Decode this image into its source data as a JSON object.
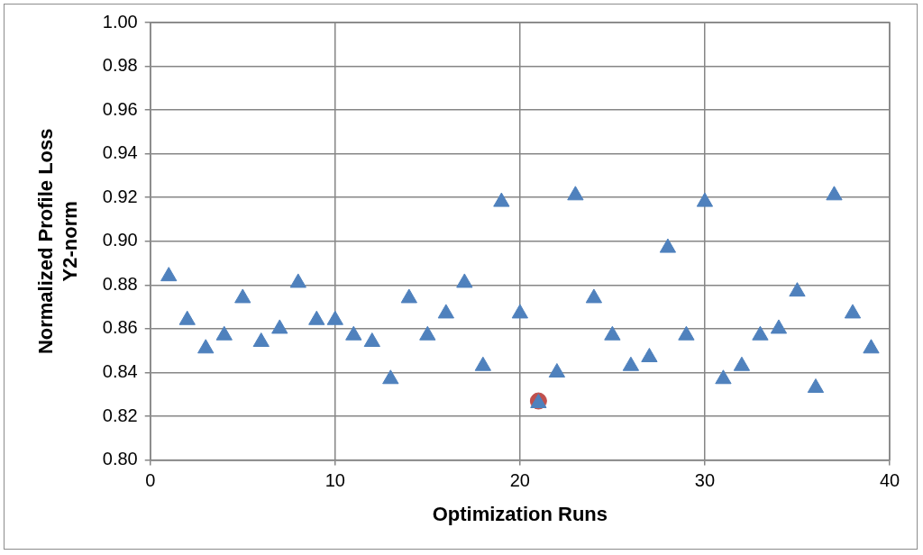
{
  "chart_data": {
    "type": "scatter",
    "x_label": "Optimization Runs",
    "y_label": [
      "Normalized Profile Loss",
      "Y2-norm"
    ],
    "xlim": [
      0,
      40
    ],
    "xticks": [
      0,
      10,
      20,
      30,
      40
    ],
    "ylim": [
      0.8,
      1.0
    ],
    "yticks": [
      {
        "value": 0.8,
        "label": "0.80"
      },
      {
        "value": 0.82,
        "label": "0.82"
      },
      {
        "value": 0.84,
        "label": "0.84"
      },
      {
        "value": 0.86,
        "label": "0.86"
      },
      {
        "value": 0.88,
        "label": "0.88"
      },
      {
        "value": 0.9,
        "label": "0.90"
      },
      {
        "value": 0.92,
        "label": "0.92"
      },
      {
        "value": 0.94,
        "label": "0.94"
      },
      {
        "value": 0.96,
        "label": "0.96"
      },
      {
        "value": 0.98,
        "label": "0.98"
      },
      {
        "value": 1.0,
        "label": "1.00"
      }
    ],
    "grid": true,
    "series": [
      {
        "color": "#4f81bd",
        "marker": "triangle",
        "x": [
          1,
          2,
          3,
          4,
          5,
          6,
          7,
          8,
          9,
          10,
          11,
          12,
          13,
          14,
          15,
          16,
          17,
          18,
          19,
          20,
          21,
          22,
          23,
          24,
          25,
          26,
          27,
          28,
          29,
          30,
          31,
          32,
          33,
          34,
          35,
          36,
          37,
          38,
          39
        ],
        "values": [
          0.884,
          0.864,
          0.851,
          0.857,
          0.874,
          0.854,
          0.86,
          0.881,
          0.864,
          0.864,
          0.857,
          0.854,
          0.837,
          0.874,
          0.857,
          0.867,
          0.881,
          0.843,
          0.918,
          0.867,
          0.826,
          0.84,
          0.921,
          0.874,
          0.857,
          0.843,
          0.847,
          0.897,
          0.857,
          0.918,
          0.837,
          0.843,
          0.857,
          0.86,
          0.877,
          0.833,
          0.921,
          0.867,
          0.851
        ]
      },
      {
        "color": "#c0504d",
        "marker": "circle",
        "x": [
          21
        ],
        "values": [
          0.827
        ]
      }
    ]
  }
}
